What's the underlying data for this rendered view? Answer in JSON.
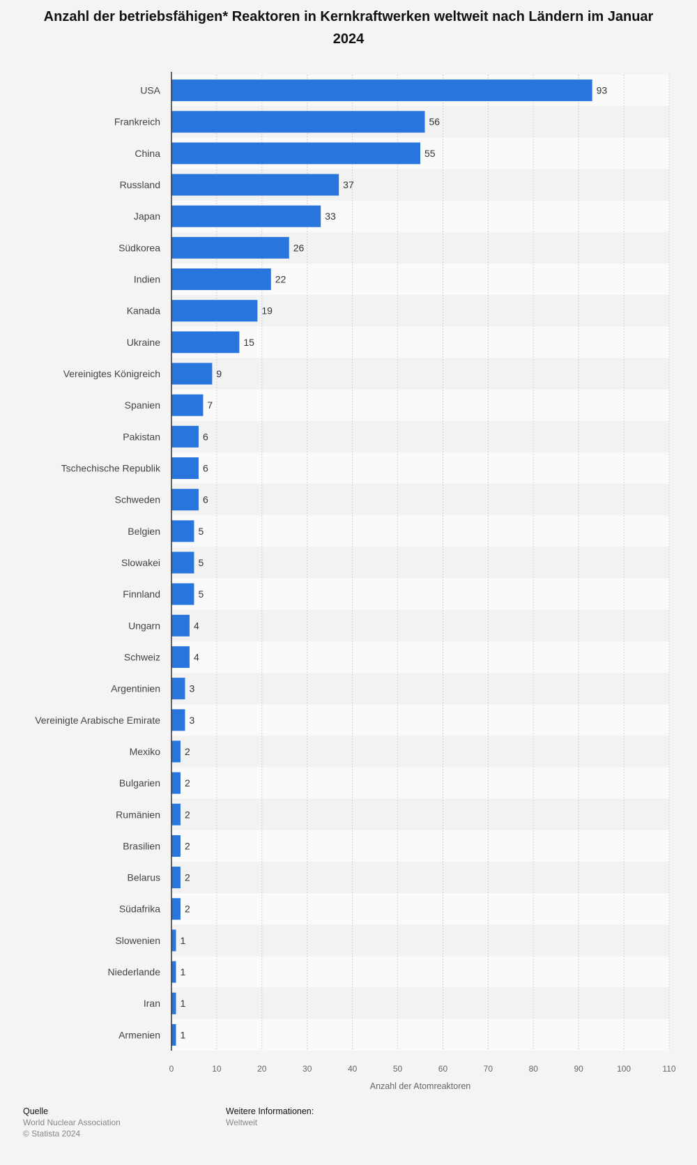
{
  "chart_data": {
    "type": "bar",
    "orientation": "horizontal",
    "title": "Anzahl der betriebsfähigen* Reaktoren in Kernkraftwerken weltweit nach Ländern im Januar 2024",
    "categories": [
      "USA",
      "Frankreich",
      "China",
      "Russland",
      "Japan",
      "Südkorea",
      "Indien",
      "Kanada",
      "Ukraine",
      "Vereinigtes Königreich",
      "Spanien",
      "Pakistan",
      "Tschechische Republik",
      "Schweden",
      "Belgien",
      "Slowakei",
      "Finnland",
      "Ungarn",
      "Schweiz",
      "Argentinien",
      "Vereinigte Arabische Emirate",
      "Mexiko",
      "Bulgarien",
      "Rumänien",
      "Brasilien",
      "Belarus",
      "Südafrika",
      "Slowenien",
      "Niederlande",
      "Iran",
      "Armenien"
    ],
    "values": [
      93,
      56,
      55,
      37,
      33,
      26,
      22,
      19,
      15,
      9,
      7,
      6,
      6,
      6,
      5,
      5,
      5,
      4,
      4,
      3,
      3,
      2,
      2,
      2,
      2,
      2,
      2,
      1,
      1,
      1,
      1
    ],
    "xlabel": "Anzahl der Atomreaktoren",
    "xlim": [
      0,
      110
    ],
    "xticks": [
      0,
      10,
      20,
      30,
      40,
      50,
      60,
      70,
      80,
      90,
      100,
      110
    ],
    "grid": true,
    "bar_color": "#2876dd"
  },
  "footer": {
    "source_heading": "Quelle",
    "source_name": "World Nuclear Association",
    "copyright": "© Statista 2024",
    "info_heading": "Weitere Informationen:",
    "info_value": "Weltweit"
  }
}
